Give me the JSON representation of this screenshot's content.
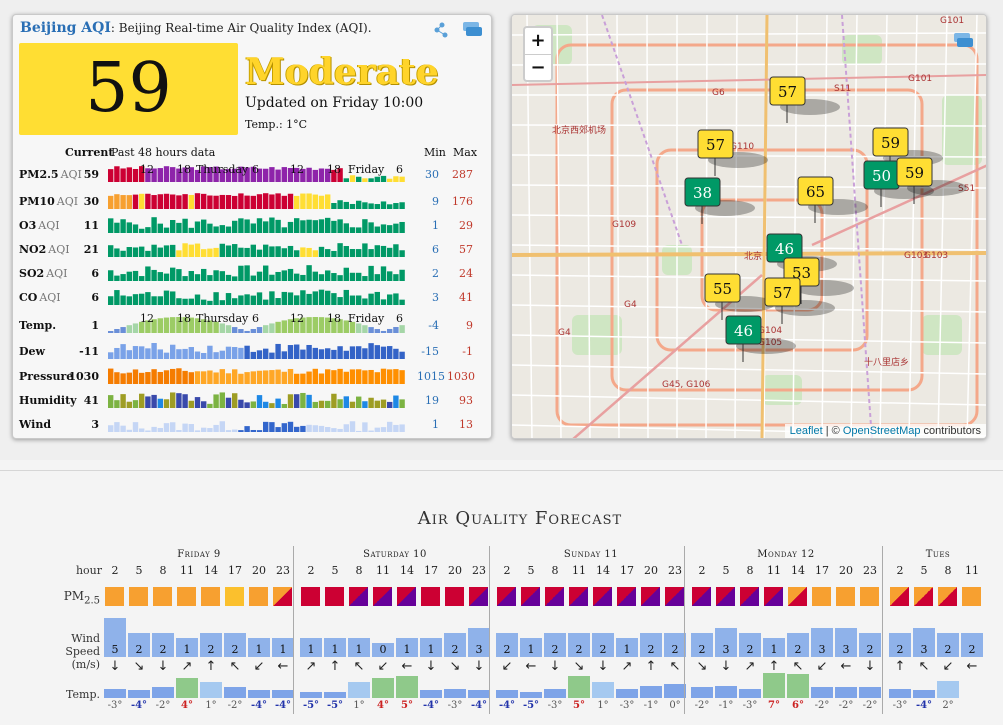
{
  "aqi_card": {
    "city": "Beijing AQI",
    "subtitle": ": Beijing Real-time Air Quality Index (AQI).",
    "aqi": "59",
    "level": "Moderate",
    "updated": "Updated on Friday 10:00",
    "temp": "Temp.: 1°C",
    "head_current": "Current",
    "head_past": "Past 48 hours data",
    "head_min": "Min",
    "head_max": "Max",
    "axis_ticks_1": [
      "12",
      "18",
      "Thursday",
      "6",
      "12",
      "18",
      "Friday",
      "6"
    ],
    "rows": [
      {
        "name": "PM2.5",
        "sub": "AQI",
        "cur": "59",
        "min": "30",
        "max": "287"
      },
      {
        "name": "PM10",
        "sub": "AQI",
        "cur": "30",
        "min": "9",
        "max": "176"
      },
      {
        "name": "O3",
        "sub": "AQI",
        "cur": "11",
        "min": "1",
        "max": "29"
      },
      {
        "name": "NO2",
        "sub": "AQI",
        "cur": "21",
        "min": "6",
        "max": "57"
      },
      {
        "name": "SO2",
        "sub": "AQI",
        "cur": "6",
        "min": "2",
        "max": "24"
      },
      {
        "name": "CO",
        "sub": "AQI",
        "cur": "6",
        "min": "3",
        "max": "41"
      },
      {
        "name": "Temp.",
        "sub": "",
        "cur": "1",
        "min": "-4",
        "max": "9"
      },
      {
        "name": "Dew",
        "sub": "",
        "cur": "-11",
        "min": "-15",
        "max": "-1"
      },
      {
        "name": "Pressure",
        "sub": "",
        "cur": "1030",
        "min": "1015",
        "max": "1030"
      },
      {
        "name": "Humidity",
        "sub": "",
        "cur": "41",
        "min": "19",
        "max": "93"
      },
      {
        "name": "Wind",
        "sub": "",
        "cur": "3",
        "min": "1",
        "max": "13"
      }
    ]
  },
  "map": {
    "zoom_in": "+",
    "zoom_out": "−",
    "attrib_leaflet": "Leaflet",
    "attrib_sep": " | © ",
    "attrib_osm": "OpenStreetMap",
    "attrib_tail": " contributors",
    "markers": [
      {
        "value": "57",
        "color": "#ffde33"
      },
      {
        "value": "57",
        "color": "#ffde33"
      },
      {
        "value": "59",
        "color": "#ffde33"
      },
      {
        "value": "50",
        "color": "#009966"
      },
      {
        "value": "59",
        "color": "#ffde33"
      },
      {
        "value": "38",
        "color": "#009966"
      },
      {
        "value": "65",
        "color": "#ffde33"
      },
      {
        "value": "46",
        "color": "#009966"
      },
      {
        "value": "53",
        "color": "#ffde33"
      },
      {
        "value": "55",
        "color": "#ffde33"
      },
      {
        "value": "57",
        "color": "#ffde33"
      },
      {
        "value": "46",
        "color": "#009966"
      }
    ],
    "labels": [
      "G101",
      "G6",
      "S11",
      "G101",
      "北京西郊机场",
      "G110",
      "G109",
      "G103",
      "G103",
      "S51",
      "北京",
      "G4",
      "G4",
      "G104",
      "G105",
      "G45, G106",
      "十八里店乡"
    ]
  },
  "forecast": {
    "title": "Air Quality Forecast",
    "hour_label": "hour",
    "pm_label": "PM",
    "pm_sub": "2.5",
    "wind_label": [
      "Wind",
      "Speed",
      "(m/s)"
    ],
    "temp_label": "Temp.",
    "days": [
      {
        "name": "Friday 9",
        "hours": [
          "2",
          "5",
          "8",
          "11",
          "14",
          "17",
          "20",
          "23"
        ]
      },
      {
        "name": "Saturday 10",
        "hours": [
          "2",
          "5",
          "8",
          "11",
          "14",
          "17",
          "20",
          "23"
        ]
      },
      {
        "name": "Sunday 11",
        "hours": [
          "2",
          "5",
          "8",
          "11",
          "14",
          "17",
          "20",
          "23"
        ]
      },
      {
        "name": "Monday 12",
        "hours": [
          "2",
          "5",
          "8",
          "11",
          "14",
          "17",
          "20",
          "23"
        ]
      },
      {
        "name": "Tues",
        "hours": [
          "2",
          "5",
          "8",
          "11"
        ]
      }
    ],
    "pm_colors": [
      [
        "#f7a030",
        "#f7a030",
        "#f7a030",
        "#f7a030",
        "#f7a030",
        "#fbc02d",
        "#f7a030",
        "#f7a030|#cc0033"
      ],
      [
        "#cc0033",
        "#cc0033",
        "#cc0033|#660099",
        "#cc0033|#660099",
        "#cc0033|#660099",
        "#cc0033",
        "#cc0033",
        "#cc0033|#660099"
      ],
      [
        "#cc0033|#660099",
        "#cc0033|#660099",
        "#cc0033|#660099",
        "#cc0033|#660099",
        "#cc0033|#660099",
        "#cc0033|#660099",
        "#cc0033|#660099",
        "#cc0033|#660099"
      ],
      [
        "#cc0033|#660099",
        "#cc0033|#660099",
        "#cc0033|#660099",
        "#cc0033|#660099",
        "#f7a030|#cc0033",
        "#f7a030",
        "#f7a030",
        "#f7a030"
      ],
      [
        "#f7a030|#cc0033",
        "#f7a030|#cc0033",
        "#f7a030|#cc0033",
        "#f7a030"
      ]
    ],
    "wind": [
      [
        "5",
        "2",
        "2",
        "1",
        "2",
        "2",
        "1",
        "1"
      ],
      [
        "1",
        "1",
        "1",
        "0",
        "1",
        "1",
        "2",
        "3"
      ],
      [
        "2",
        "1",
        "2",
        "2",
        "2",
        "1",
        "2",
        "2"
      ],
      [
        "2",
        "3",
        "2",
        "1",
        "2",
        "3",
        "3",
        "2"
      ],
      [
        "2",
        "3",
        "2",
        "2"
      ]
    ],
    "temps": [
      [
        "-3°",
        "-4°",
        "-2°",
        "4°",
        "1°",
        "-2°",
        "-4°",
        "-4°"
      ],
      [
        "-5°",
        "-5°",
        "1°",
        "4°",
        "5°",
        "-4°",
        "-3°",
        "-4°"
      ],
      [
        "-4°",
        "-5°",
        "-3°",
        "5°",
        "1°",
        "-3°",
        "-1°",
        "0°"
      ],
      [
        "-2°",
        "-1°",
        "-3°",
        "7°",
        "6°",
        "-2°",
        "-2°",
        "-2°"
      ],
      [
        "-3°",
        "-4°",
        "2°",
        ""
      ]
    ]
  }
}
